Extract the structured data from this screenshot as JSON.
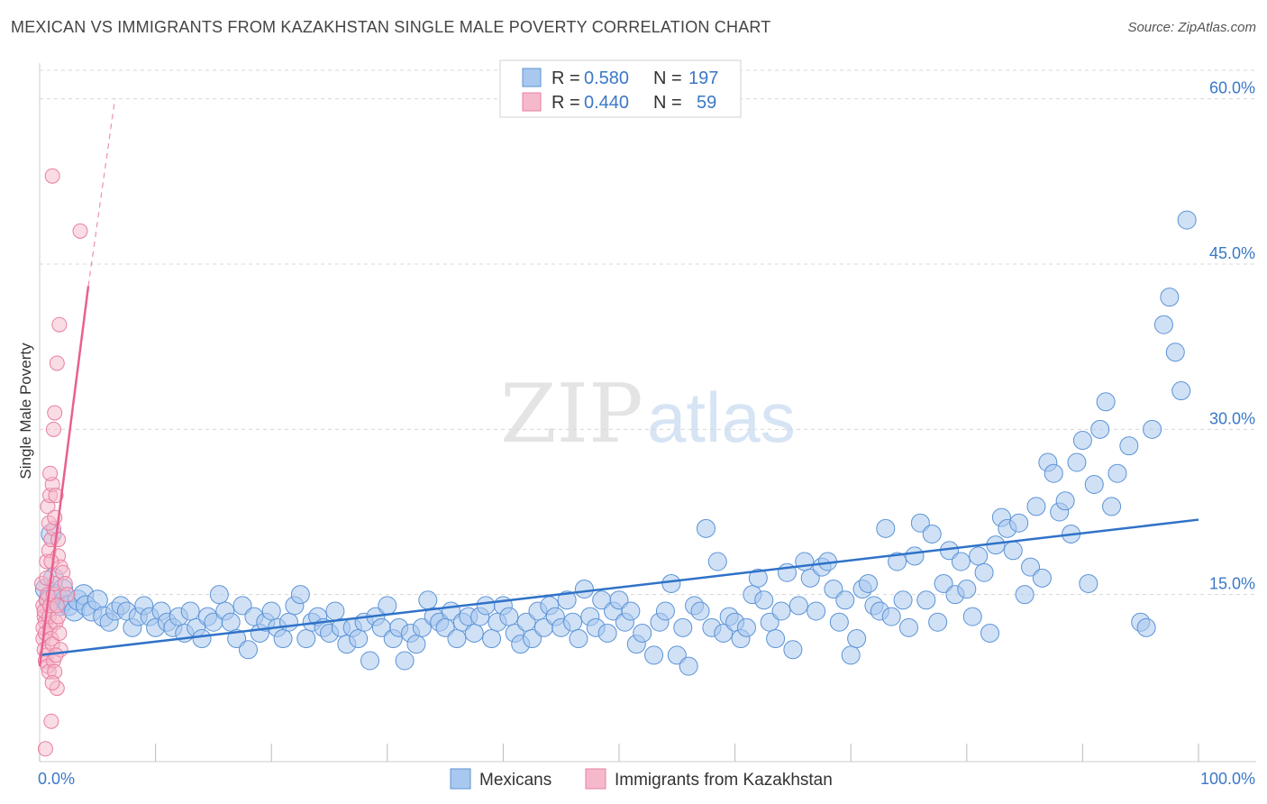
{
  "title": "MEXICAN VS IMMIGRANTS FROM KAZAKHSTAN SINGLE MALE POVERTY CORRELATION CHART",
  "source": "Source: ZipAtlas.com",
  "watermark": {
    "zip": "ZIP",
    "atlas": "atlas"
  },
  "colors": {
    "blue_fill": "#a9c8ef",
    "blue_stroke": "#5b93d6",
    "blue_line": "#2f72c8",
    "pink_fill": "#f6b9cb",
    "pink_stroke": "#e87fa0",
    "pink_line": "#e8608f",
    "tick_text": "#3a78c6",
    "grid": "#d8d8d8"
  },
  "legend": {
    "rows": [
      {
        "r_label": "R =",
        "r_value": "0.580",
        "n_label": "N =",
        "n_value": "197"
      },
      {
        "r_label": "R =",
        "r_value": "0.440",
        "n_label": "N =",
        "n_value": "59"
      }
    ]
  },
  "chart_data": {
    "type": "scatter",
    "title": "MEXICAN VS IMMIGRANTS FROM KAZAKHSTAN SINGLE MALE POVERTY CORRELATION CHART",
    "xlabel": "",
    "ylabel": "Single Male Poverty",
    "xlim": [
      0,
      100
    ],
    "ylim": [
      0,
      63
    ],
    "x_tick_labels": [
      "0.0%",
      "100.0%"
    ],
    "y_ticks": [
      15,
      30,
      45,
      60
    ],
    "y_tick_labels": [
      "15.0%",
      "30.0%",
      "45.0%",
      "60.0%"
    ],
    "grid": true,
    "legend_position": "top-center",
    "series": [
      {
        "name": "Mexicans",
        "r": 0.58,
        "n": 197,
        "trend": {
          "x": [
            0,
            100
          ],
          "y": [
            9.5,
            21.8
          ]
        },
        "points": [
          [
            0.5,
            15.5
          ],
          [
            0.8,
            14.5
          ],
          [
            1,
            20.5
          ],
          [
            1.2,
            16.5
          ],
          [
            1.5,
            15
          ],
          [
            1.8,
            14
          ],
          [
            2,
            15.5
          ],
          [
            2.2,
            14.5
          ],
          [
            2.5,
            14
          ],
          [
            3,
            13.5
          ],
          [
            3.3,
            14.5
          ],
          [
            3.8,
            15
          ],
          [
            4,
            14
          ],
          [
            4.5,
            13.5
          ],
          [
            5,
            14.5
          ],
          [
            5.5,
            13
          ],
          [
            6,
            12.5
          ],
          [
            6.5,
            13.5
          ],
          [
            7,
            14
          ],
          [
            7.5,
            13.5
          ],
          [
            8,
            12
          ],
          [
            8.5,
            13
          ],
          [
            9,
            14
          ],
          [
            9.5,
            13
          ],
          [
            10,
            12
          ],
          [
            10.5,
            13.5
          ],
          [
            11,
            12.5
          ],
          [
            11.5,
            12
          ],
          [
            12,
            13
          ],
          [
            12.5,
            11.5
          ],
          [
            13,
            13.5
          ],
          [
            13.5,
            12
          ],
          [
            14,
            11
          ],
          [
            14.5,
            13
          ],
          [
            15,
            12.5
          ],
          [
            15.5,
            15
          ],
          [
            16,
            13.5
          ],
          [
            16.5,
            12.5
          ],
          [
            17,
            11
          ],
          [
            17.5,
            14
          ],
          [
            18,
            10
          ],
          [
            18.5,
            13
          ],
          [
            19,
            11.5
          ],
          [
            19.5,
            12.5
          ],
          [
            20,
            13.5
          ],
          [
            20.5,
            12
          ],
          [
            21,
            11
          ],
          [
            21.5,
            12.5
          ],
          [
            22,
            14
          ],
          [
            22.5,
            15
          ],
          [
            23,
            11
          ],
          [
            23.5,
            12.5
          ],
          [
            24,
            13
          ],
          [
            24.5,
            12
          ],
          [
            25,
            11.5
          ],
          [
            25.5,
            13.5
          ],
          [
            26,
            12
          ],
          [
            26.5,
            10.5
          ],
          [
            27,
            12
          ],
          [
            27.5,
            11
          ],
          [
            28,
            12.5
          ],
          [
            28.5,
            9
          ],
          [
            29,
            13
          ],
          [
            29.5,
            12
          ],
          [
            30,
            14
          ],
          [
            30.5,
            11
          ],
          [
            31,
            12
          ],
          [
            31.5,
            9
          ],
          [
            32,
            11.5
          ],
          [
            32.5,
            10.5
          ],
          [
            33,
            12
          ],
          [
            33.5,
            14.5
          ],
          [
            34,
            13
          ],
          [
            34.5,
            12.5
          ],
          [
            35,
            12
          ],
          [
            35.5,
            13.5
          ],
          [
            36,
            11
          ],
          [
            36.5,
            12.5
          ],
          [
            37,
            13
          ],
          [
            37.5,
            11.5
          ],
          [
            38,
            13
          ],
          [
            38.5,
            14
          ],
          [
            39,
            11
          ],
          [
            39.5,
            12.5
          ],
          [
            40,
            14
          ],
          [
            40.5,
            13
          ],
          [
            41,
            11.5
          ],
          [
            41.5,
            10.5
          ],
          [
            42,
            12.5
          ],
          [
            42.5,
            11
          ],
          [
            43,
            13.5
          ],
          [
            43.5,
            12
          ],
          [
            44,
            14
          ],
          [
            44.5,
            13
          ],
          [
            45,
            12
          ],
          [
            45.5,
            14.5
          ],
          [
            46,
            12.5
          ],
          [
            46.5,
            11
          ],
          [
            47,
            15.5
          ],
          [
            47.5,
            13
          ],
          [
            48,
            12
          ],
          [
            48.5,
            14.5
          ],
          [
            49,
            11.5
          ],
          [
            49.5,
            13.5
          ],
          [
            50,
            14.5
          ],
          [
            50.5,
            12.5
          ],
          [
            51,
            13.5
          ],
          [
            51.5,
            10.5
          ],
          [
            52,
            11.5
          ],
          [
            53,
            9.5
          ],
          [
            53.5,
            12.5
          ],
          [
            54,
            13.5
          ],
          [
            54.5,
            16
          ],
          [
            55,
            9.5
          ],
          [
            55.5,
            12
          ],
          [
            56,
            8.5
          ],
          [
            56.5,
            14
          ],
          [
            57,
            13.5
          ],
          [
            57.5,
            21
          ],
          [
            58,
            12
          ],
          [
            58.5,
            18
          ],
          [
            59,
            11.5
          ],
          [
            59.5,
            13
          ],
          [
            60,
            12.5
          ],
          [
            60.5,
            11
          ],
          [
            61,
            12
          ],
          [
            61.5,
            15
          ],
          [
            62,
            16.5
          ],
          [
            62.5,
            14.5
          ],
          [
            63,
            12.5
          ],
          [
            63.5,
            11
          ],
          [
            64,
            13.5
          ],
          [
            64.5,
            17
          ],
          [
            65,
            10
          ],
          [
            65.5,
            14
          ],
          [
            66,
            18
          ],
          [
            66.5,
            16.5
          ],
          [
            67,
            13.5
          ],
          [
            67.5,
            17.5
          ],
          [
            68,
            18
          ],
          [
            68.5,
            15.5
          ],
          [
            69,
            12.5
          ],
          [
            69.5,
            14.5
          ],
          [
            70,
            9.5
          ],
          [
            70.5,
            11
          ],
          [
            71,
            15.5
          ],
          [
            71.5,
            16
          ],
          [
            72,
            14
          ],
          [
            72.5,
            13.5
          ],
          [
            73,
            21
          ],
          [
            73.5,
            13
          ],
          [
            74,
            18
          ],
          [
            74.5,
            14.5
          ],
          [
            75,
            12
          ],
          [
            75.5,
            18.5
          ],
          [
            76,
            21.5
          ],
          [
            76.5,
            14.5
          ],
          [
            77,
            20.5
          ],
          [
            77.5,
            12.5
          ],
          [
            78,
            16
          ],
          [
            78.5,
            19
          ],
          [
            79,
            15
          ],
          [
            79.5,
            18
          ],
          [
            80,
            15.5
          ],
          [
            80.5,
            13
          ],
          [
            81,
            18.5
          ],
          [
            81.5,
            17
          ],
          [
            82,
            11.5
          ],
          [
            82.5,
            19.5
          ],
          [
            83,
            22
          ],
          [
            83.5,
            21
          ],
          [
            84,
            19
          ],
          [
            84.5,
            21.5
          ],
          [
            85,
            15
          ],
          [
            85.5,
            17.5
          ],
          [
            86,
            23
          ],
          [
            86.5,
            16.5
          ],
          [
            87,
            27
          ],
          [
            87.5,
            26
          ],
          [
            88,
            22.5
          ],
          [
            88.5,
            23.5
          ],
          [
            89,
            20.5
          ],
          [
            89.5,
            27
          ],
          [
            90,
            29
          ],
          [
            90.5,
            16
          ],
          [
            91,
            25
          ],
          [
            91.5,
            30
          ],
          [
            92,
            32.5
          ],
          [
            92.5,
            23
          ],
          [
            93,
            26
          ],
          [
            94,
            28.5
          ],
          [
            95,
            12.5
          ],
          [
            95.5,
            12
          ],
          [
            96,
            30
          ],
          [
            97,
            39.5
          ],
          [
            97.5,
            42
          ],
          [
            98,
            37
          ],
          [
            98.5,
            33.5
          ],
          [
            99,
            49
          ]
        ]
      },
      {
        "name": "Immigrants from Kazakhstan",
        "r": 0.44,
        "n": 59,
        "trend": {
          "x": [
            0,
            4.2
          ],
          "y": [
            8.5,
            43
          ]
        },
        "trend_dashed": {
          "x": [
            4.2,
            6.5
          ],
          "y": [
            43,
            60
          ]
        },
        "points": [
          [
            0.2,
            16
          ],
          [
            0.3,
            14
          ],
          [
            0.4,
            13
          ],
          [
            0.5,
            12.5
          ],
          [
            0.3,
            11
          ],
          [
            0.4,
            10
          ],
          [
            0.6,
            9.5
          ],
          [
            0.5,
            9
          ],
          [
            0.7,
            8.5
          ],
          [
            0.8,
            8
          ],
          [
            0.3,
            12
          ],
          [
            0.5,
            11.5
          ],
          [
            0.6,
            14.5
          ],
          [
            0.7,
            15
          ],
          [
            0.4,
            13.5
          ],
          [
            0.9,
            12
          ],
          [
            1,
            11
          ],
          [
            1.1,
            10.5
          ],
          [
            0.8,
            13
          ],
          [
            0.9,
            14
          ],
          [
            1.2,
            9
          ],
          [
            1.3,
            8
          ],
          [
            1.5,
            6.5
          ],
          [
            1.1,
            7
          ],
          [
            1.4,
            12.5
          ],
          [
            1.6,
            13
          ],
          [
            1.7,
            11.5
          ],
          [
            1.8,
            10
          ],
          [
            1.2,
            15
          ],
          [
            1.3,
            16
          ],
          [
            0.6,
            18
          ],
          [
            0.8,
            19
          ],
          [
            1,
            20
          ],
          [
            1.2,
            21
          ],
          [
            0.7,
            23
          ],
          [
            0.9,
            24
          ],
          [
            1.1,
            25
          ],
          [
            1.4,
            24
          ],
          [
            0.9,
            26
          ],
          [
            1.2,
            30
          ],
          [
            1.3,
            31.5
          ],
          [
            1.5,
            36
          ],
          [
            1.7,
            39.5
          ],
          [
            1.1,
            53
          ],
          [
            3.5,
            48
          ],
          [
            1.6,
            18.5
          ],
          [
            1.8,
            17.5
          ],
          [
            2,
            17
          ],
          [
            2.2,
            16
          ],
          [
            2.4,
            15
          ],
          [
            0.5,
            1
          ],
          [
            1,
            3.5
          ],
          [
            1.4,
            9.5
          ],
          [
            1.5,
            14
          ],
          [
            0.6,
            16.5
          ],
          [
            0.8,
            21.5
          ],
          [
            1,
            18
          ],
          [
            1.3,
            22
          ],
          [
            1.6,
            20
          ]
        ]
      }
    ]
  },
  "bottom_legend": [
    {
      "label": "Mexicans"
    },
    {
      "label": "Immigrants from Kazakhstan"
    }
  ]
}
